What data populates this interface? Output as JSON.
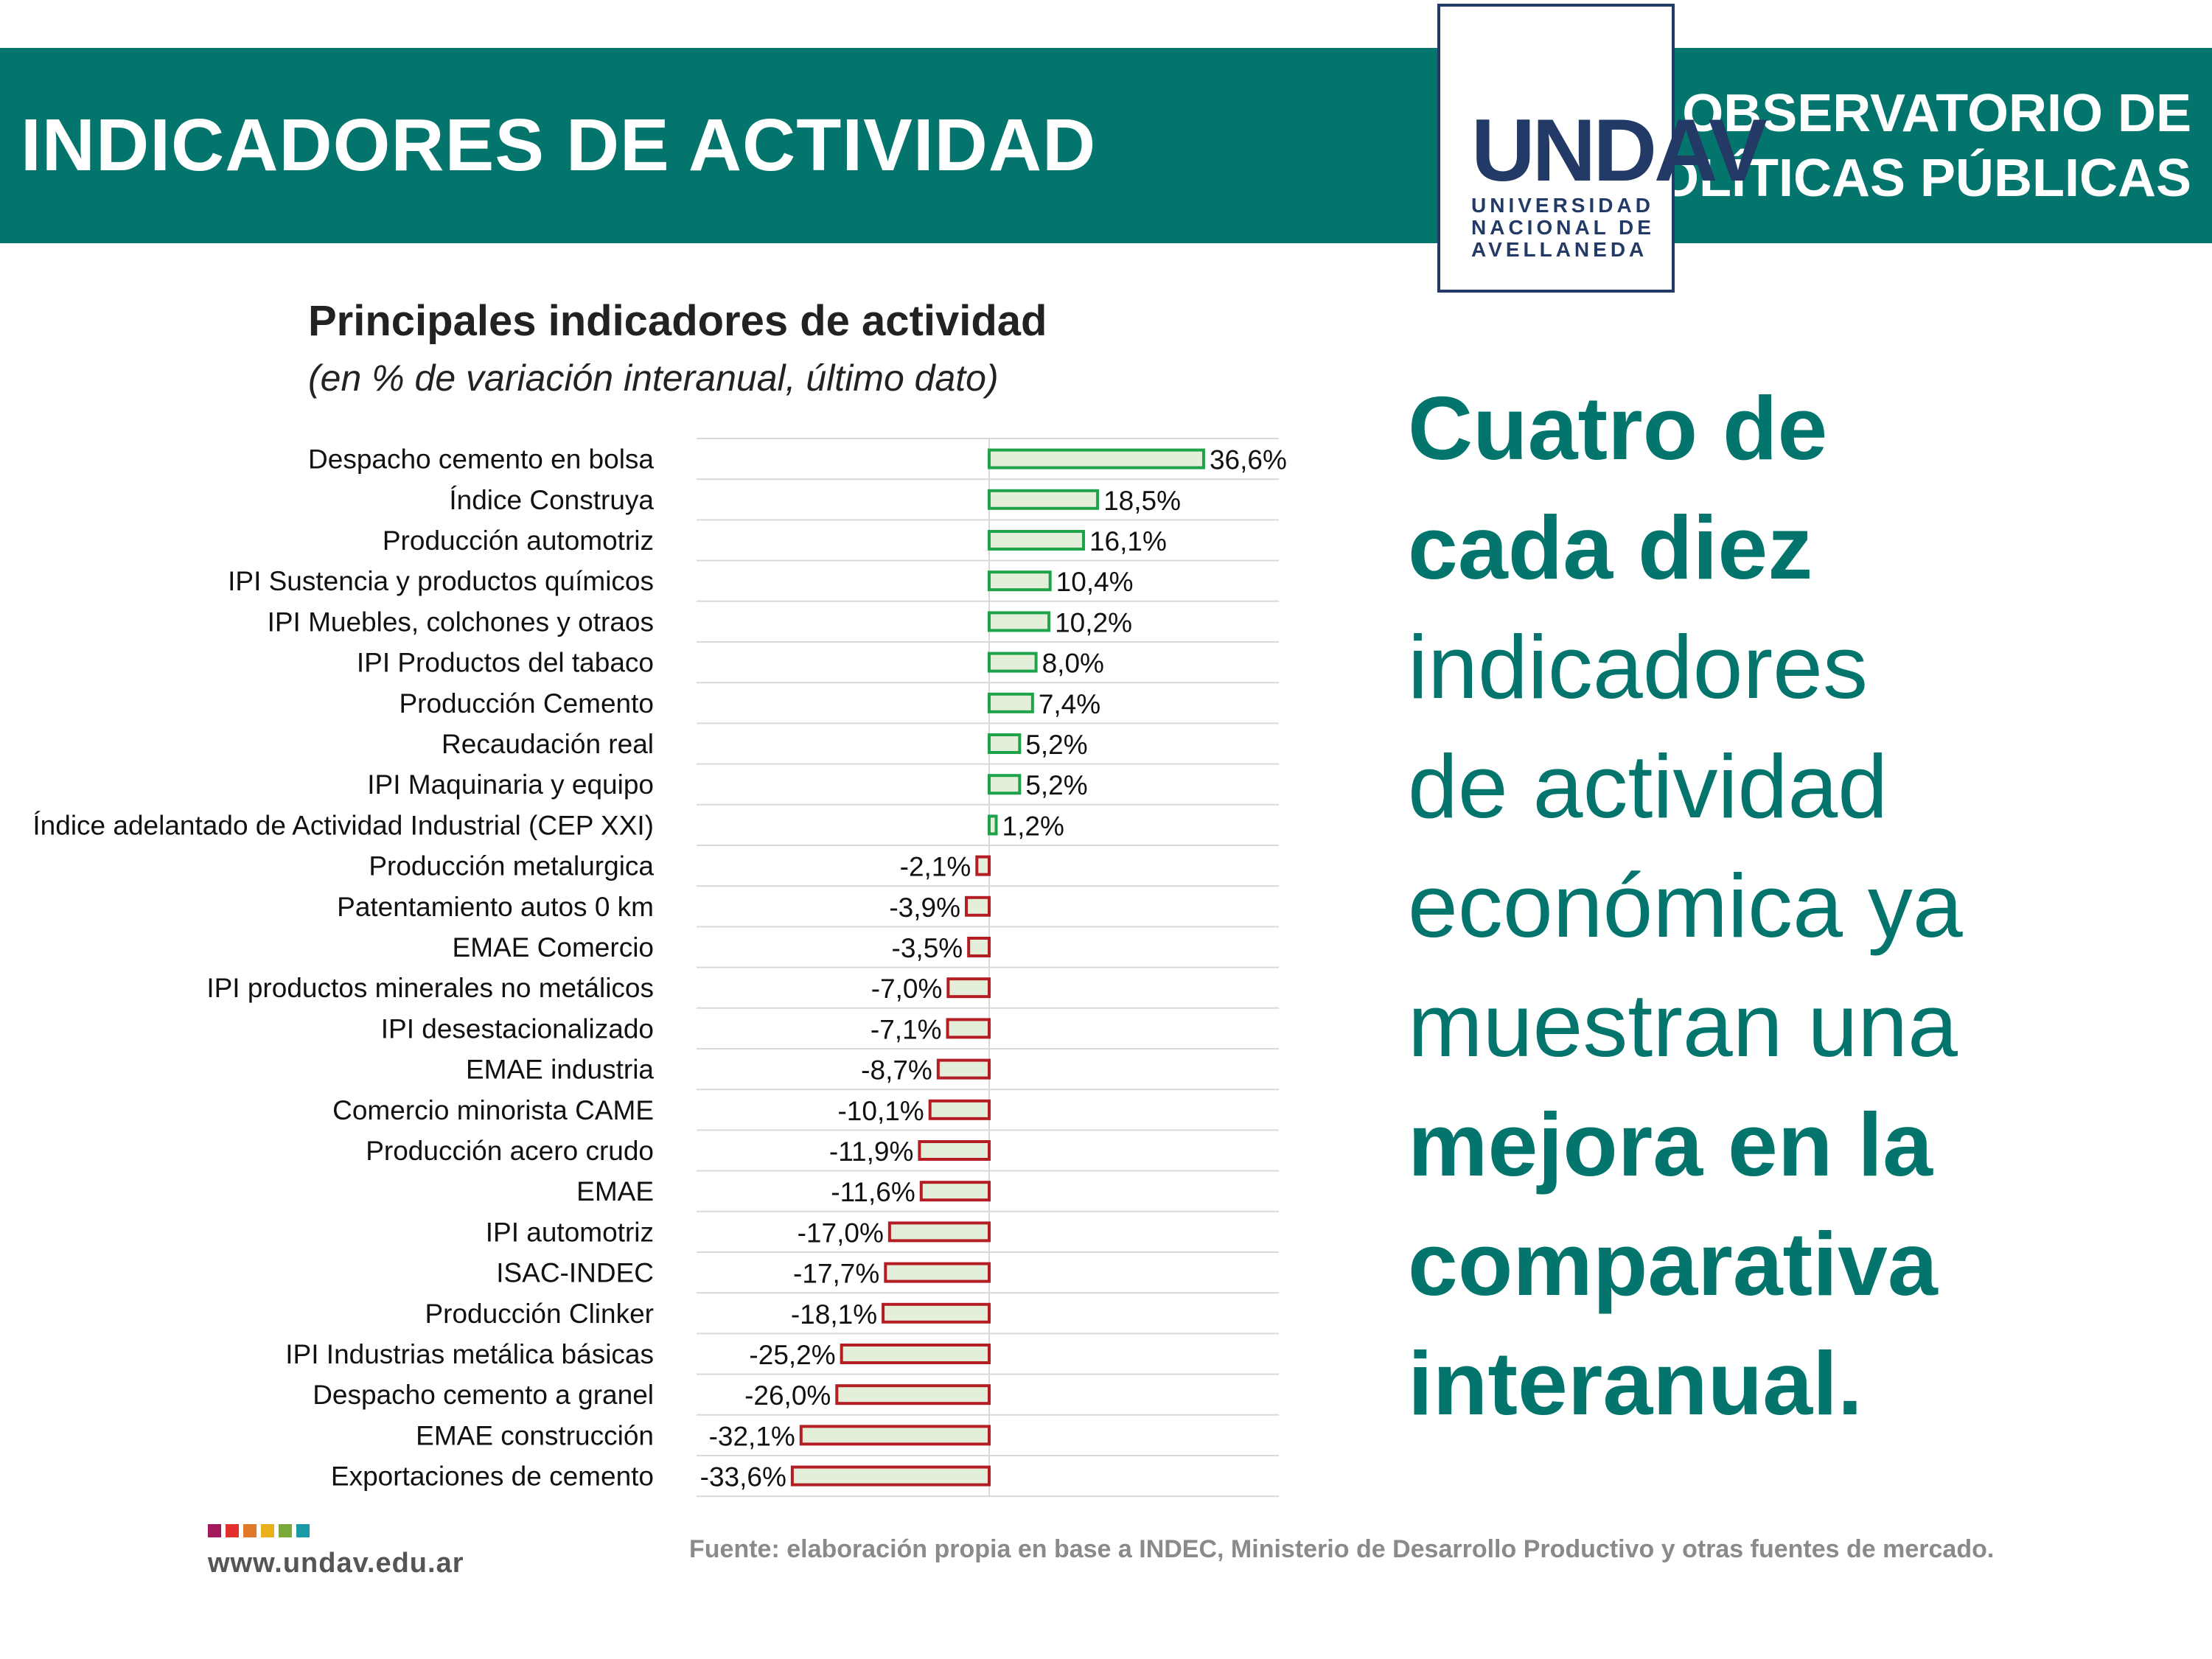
{
  "header": {
    "title": "INDICADORES DE ACTIVIDAD",
    "observatorio_line1": "OBSERVATORIO DE",
    "observatorio_line2": "POLÍTICAS PÚBLICAS",
    "logo_mark": "UNDAV",
    "logo_line1": "UNIVERSIDAD",
    "logo_line2": "NACIONAL DE",
    "logo_line3": "AVELLANEDA"
  },
  "headline": {
    "p1": "Cuatro de",
    "p2": "cada diez",
    "p3": "indicadores",
    "p4": "de actividad",
    "p5": "económica ya",
    "p6": "muestran una",
    "p7": "mejora en la",
    "p8": "comparativa",
    "p9": "interanual."
  },
  "footer": {
    "url": "www.undav.edu.ar",
    "source": "Fuente: elaboración propia en base a INDEC, Ministerio de Desarrollo Productivo y otras fuentes de mercado.",
    "dot_colors": [
      "#a3195b",
      "#e2312d",
      "#e0792a",
      "#eab01c",
      "#7aa83a",
      "#1a9aa6"
    ]
  },
  "colors": {
    "positive_stroke": "#1fa34a",
    "negative_stroke": "#b51d24",
    "bar_fill": "#e3efd8",
    "grid": "#d9d9d9"
  },
  "chart_data": {
    "type": "bar",
    "orientation": "horizontal",
    "title": "Principales indicadores de actividad",
    "subtitle": "(en % de variación interanual, último dato)",
    "unit": "%",
    "xlim": [
      -37,
      37
    ],
    "grid": true,
    "categories": [
      "Despacho cemento en bolsa",
      "Índice Construya",
      "Producción automotriz",
      "IPI Sustencia y productos químicos",
      "IPI Muebles, colchones y otraos",
      "IPI Productos del tabaco",
      "Producción Cemento",
      "Recaudación real",
      "IPI Maquinaria y equipo",
      "Índice adelantado de Actividad Industrial (CEP XXI)",
      "Producción metalurgica",
      "Patentamiento autos 0 km",
      "EMAE Comercio",
      "IPI productos minerales no metálicos",
      "IPI desestacionalizado",
      "EMAE industria",
      "Comercio minorista CAME",
      "Producción acero crudo",
      "EMAE",
      "IPI automotriz",
      "ISAC-INDEC",
      "Producción Clinker",
      "IPI Industrias metálica básicas",
      "Despacho cemento a granel",
      "EMAE construcción",
      "Exportaciones de cemento"
    ],
    "values": [
      36.6,
      18.5,
      16.1,
      10.4,
      10.2,
      8.0,
      7.4,
      5.2,
      5.2,
      1.2,
      -2.1,
      -3.9,
      -3.5,
      -7.0,
      -7.1,
      -8.7,
      -10.1,
      -11.9,
      -11.6,
      -17.0,
      -17.7,
      -18.1,
      -25.2,
      -26.0,
      -32.1,
      -33.6
    ],
    "value_labels": [
      "36,6%",
      "18,5%",
      "16,1%",
      "10,4%",
      "10,2%",
      "8,0%",
      "7,4%",
      "5,2%",
      "5,2%",
      "1,2%",
      "-2,1%",
      "-3,9%",
      "-3,5%",
      "-7,0%",
      "-7,1%",
      "-8,7%",
      "-10,1%",
      "-11,9%",
      "-11,6%",
      "-17,0%",
      "-17,7%",
      "-18,1%",
      "-25,2%",
      "-26,0%",
      "-32,1%",
      "-33,6%"
    ]
  }
}
